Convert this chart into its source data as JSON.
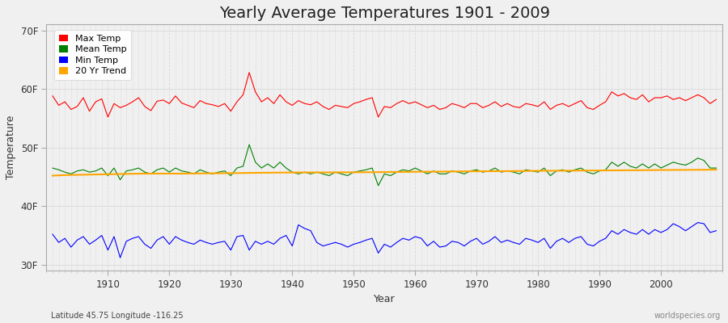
{
  "title": "Yearly Average Temperatures 1901 - 2009",
  "xlabel": "Year",
  "ylabel": "Temperature",
  "years": [
    1901,
    1902,
    1903,
    1904,
    1905,
    1906,
    1907,
    1908,
    1909,
    1910,
    1911,
    1912,
    1913,
    1914,
    1915,
    1916,
    1917,
    1918,
    1919,
    1920,
    1921,
    1922,
    1923,
    1924,
    1925,
    1926,
    1927,
    1928,
    1929,
    1930,
    1931,
    1932,
    1933,
    1934,
    1935,
    1936,
    1937,
    1938,
    1939,
    1940,
    1941,
    1942,
    1943,
    1944,
    1945,
    1946,
    1947,
    1948,
    1949,
    1950,
    1951,
    1952,
    1953,
    1954,
    1955,
    1956,
    1957,
    1958,
    1959,
    1960,
    1961,
    1962,
    1963,
    1964,
    1965,
    1966,
    1967,
    1968,
    1969,
    1970,
    1971,
    1972,
    1973,
    1974,
    1975,
    1976,
    1977,
    1978,
    1979,
    1980,
    1981,
    1982,
    1983,
    1984,
    1985,
    1986,
    1987,
    1988,
    1989,
    1990,
    1991,
    1992,
    1993,
    1994,
    1995,
    1996,
    1997,
    1998,
    1999,
    2000,
    2001,
    2002,
    2003,
    2004,
    2005,
    2006,
    2007,
    2008,
    2009
  ],
  "max_temp": [
    58.8,
    57.2,
    57.8,
    56.5,
    57.0,
    58.5,
    56.2,
    57.8,
    58.3,
    55.2,
    57.5,
    56.8,
    57.2,
    57.8,
    58.5,
    57.0,
    56.3,
    57.9,
    58.1,
    57.5,
    58.8,
    57.6,
    57.2,
    56.8,
    58.0,
    57.5,
    57.3,
    57.0,
    57.5,
    56.2,
    57.8,
    59.0,
    62.8,
    59.5,
    57.8,
    58.5,
    57.5,
    59.0,
    57.8,
    57.2,
    58.0,
    57.5,
    57.3,
    57.8,
    57.0,
    56.5,
    57.2,
    57.0,
    56.8,
    57.5,
    57.8,
    58.2,
    58.5,
    55.2,
    57.0,
    56.8,
    57.5,
    58.0,
    57.5,
    57.8,
    57.3,
    56.8,
    57.2,
    56.5,
    56.8,
    57.5,
    57.2,
    56.8,
    57.5,
    57.5,
    56.8,
    57.2,
    57.8,
    57.0,
    57.5,
    57.0,
    56.8,
    57.5,
    57.3,
    57.0,
    57.8,
    56.5,
    57.2,
    57.5,
    57.0,
    57.5,
    58.0,
    56.8,
    56.5,
    57.2,
    57.8,
    59.5,
    58.8,
    59.2,
    58.5,
    58.2,
    59.0,
    57.8,
    58.5,
    58.5,
    58.8,
    58.2,
    58.5,
    58.0,
    58.5,
    59.0,
    58.5,
    57.5,
    58.2
  ],
  "mean_temp": [
    46.5,
    46.2,
    45.8,
    45.5,
    46.0,
    46.2,
    45.8,
    46.0,
    46.5,
    45.2,
    46.5,
    44.5,
    46.0,
    46.2,
    46.5,
    45.8,
    45.5,
    46.2,
    46.5,
    45.8,
    46.5,
    46.0,
    45.8,
    45.5,
    46.2,
    45.8,
    45.5,
    45.8,
    46.0,
    45.2,
    46.5,
    46.8,
    50.5,
    47.5,
    46.5,
    47.2,
    46.5,
    47.5,
    46.5,
    45.8,
    45.5,
    45.8,
    45.5,
    45.8,
    45.5,
    45.2,
    45.8,
    45.5,
    45.2,
    45.8,
    46.0,
    46.2,
    46.5,
    43.5,
    45.5,
    45.2,
    45.8,
    46.2,
    46.0,
    46.5,
    46.0,
    45.5,
    46.0,
    45.5,
    45.5,
    46.0,
    45.8,
    45.5,
    46.0,
    46.2,
    45.8,
    46.0,
    46.5,
    45.8,
    46.0,
    45.8,
    45.5,
    46.2,
    46.0,
    45.8,
    46.5,
    45.2,
    46.0,
    46.2,
    45.8,
    46.2,
    46.5,
    45.8,
    45.5,
    46.0,
    46.2,
    47.5,
    46.8,
    47.5,
    46.8,
    46.5,
    47.2,
    46.5,
    47.2,
    46.5,
    47.0,
    47.5,
    47.2,
    47.0,
    47.5,
    48.2,
    47.8,
    46.5,
    46.5
  ],
  "min_temp": [
    35.2,
    33.8,
    34.5,
    33.0,
    34.2,
    34.8,
    33.5,
    34.2,
    35.0,
    32.5,
    34.8,
    31.2,
    34.0,
    34.5,
    34.8,
    33.5,
    32.8,
    34.2,
    34.8,
    33.5,
    34.8,
    34.2,
    33.8,
    33.5,
    34.2,
    33.8,
    33.5,
    33.8,
    34.0,
    32.5,
    34.8,
    35.0,
    32.5,
    34.0,
    33.5,
    34.0,
    33.5,
    34.5,
    35.0,
    33.2,
    36.8,
    36.2,
    35.8,
    33.8,
    33.2,
    33.5,
    33.8,
    33.5,
    33.0,
    33.5,
    33.8,
    34.2,
    34.5,
    32.0,
    33.5,
    33.0,
    33.8,
    34.5,
    34.2,
    34.8,
    34.5,
    33.2,
    34.0,
    33.0,
    33.2,
    34.0,
    33.8,
    33.2,
    34.0,
    34.5,
    33.5,
    34.0,
    34.8,
    33.8,
    34.2,
    33.8,
    33.5,
    34.5,
    34.2,
    33.8,
    34.5,
    32.8,
    34.0,
    34.5,
    33.8,
    34.5,
    34.8,
    33.5,
    33.2,
    34.0,
    34.5,
    35.8,
    35.2,
    36.0,
    35.5,
    35.2,
    36.0,
    35.2,
    36.0,
    35.5,
    36.0,
    37.0,
    36.5,
    35.8,
    36.5,
    37.2,
    37.0,
    35.5,
    35.8
  ],
  "trend_temp": [
    45.2,
    45.25,
    45.3,
    45.32,
    45.34,
    45.36,
    45.38,
    45.4,
    45.42,
    45.44,
    45.46,
    45.48,
    45.5,
    45.52,
    45.54,
    45.55,
    45.55,
    45.55,
    45.55,
    45.55,
    45.55,
    45.55,
    45.56,
    45.57,
    45.58,
    45.59,
    45.6,
    45.61,
    45.62,
    45.63,
    45.64,
    45.65,
    45.67,
    45.68,
    45.69,
    45.7,
    45.71,
    45.72,
    45.73,
    45.74,
    45.75,
    45.75,
    45.75,
    45.75,
    45.75,
    45.75,
    45.76,
    45.77,
    45.77,
    45.77,
    45.78,
    45.78,
    45.79,
    45.8,
    45.81,
    45.82,
    45.83,
    45.84,
    45.85,
    45.86,
    45.87,
    45.87,
    45.88,
    45.89,
    45.9,
    45.91,
    45.92,
    45.93,
    45.94,
    45.95,
    45.95,
    45.96,
    45.97,
    45.97,
    45.97,
    45.98,
    45.99,
    46.0,
    46.01,
    46.02,
    46.03,
    46.03,
    46.04,
    46.04,
    46.05,
    46.06,
    46.07,
    46.07,
    46.07,
    46.08,
    46.09,
    46.1,
    46.1,
    46.11,
    46.12,
    46.12,
    46.13,
    46.14,
    46.15,
    46.16,
    46.17,
    46.17,
    46.18,
    46.18,
    46.19,
    46.2,
    46.2,
    46.21,
    46.22
  ],
  "yticks": [
    30,
    40,
    50,
    60,
    70
  ],
  "ytick_labels": [
    "30F",
    "40F",
    "50F",
    "60F",
    "70F"
  ],
  "xlim_min": 1900,
  "xlim_max": 2010,
  "ylim_min": 29,
  "ylim_max": 71,
  "fig_bg_color": "#f0f0f0",
  "plot_bg_color": "#f0f0f0",
  "max_color": "#ff0000",
  "mean_color": "#008000",
  "min_color": "#0000ff",
  "trend_color": "#ffa500",
  "grid_color": "#d8d8d8",
  "title_fontsize": 14,
  "label_fontsize": 9,
  "tick_fontsize": 8.5,
  "subtitle": "Latitude 45.75 Longitude -116.25",
  "watermark": "worldspecies.org"
}
